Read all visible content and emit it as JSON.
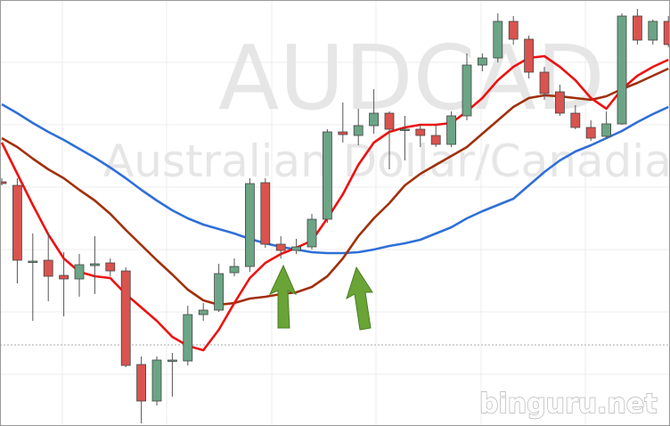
{
  "chart_data": {
    "type": "candlestick",
    "watermark": "AUDCAD",
    "watermark_subtitle": "Australian Dollar/Canadian",
    "credit": "binguru.net",
    "ylim": [
      0,
      478
    ],
    "up_color": "#6ba585",
    "down_color": "#d9534f",
    "open": [
      274,
      270,
      184,
      186,
      169,
      165,
      180,
      183,
      174,
      69,
      28,
      73,
      73,
      125,
      130,
      172,
      179,
      273,
      204,
      197,
      201,
      232,
      330,
      326,
      337,
      351,
      332,
      333,
      326,
      316,
      348,
      405,
      413,
      454,
      434,
      397,
      375,
      351,
      335,
      325,
      339,
      460,
      433,
      454
    ],
    "high": [
      278,
      278,
      216,
      216,
      195,
      193,
      213,
      188,
      178,
      78,
      78,
      82,
      135,
      138,
      182,
      188,
      278,
      278,
      213,
      210,
      238,
      333,
      363,
      356,
      378,
      353,
      348,
      338,
      338,
      353,
      418,
      418,
      463,
      460,
      438,
      403,
      383,
      360,
      343,
      353,
      463,
      468,
      456,
      460
    ],
    "low": [
      270,
      160,
      118,
      140,
      123,
      145,
      148,
      168,
      66,
      3,
      23,
      33,
      68,
      118,
      128,
      168,
      173,
      200,
      188,
      193,
      198,
      228,
      318,
      315,
      328,
      288,
      298,
      313,
      313,
      313,
      343,
      398,
      408,
      428,
      390,
      366,
      348,
      333,
      320,
      323,
      338,
      428,
      428,
      425
    ],
    "close": [
      272,
      186,
      185,
      168,
      165,
      181,
      182,
      174,
      68,
      28,
      74,
      74,
      125,
      130,
      171,
      179,
      272,
      204,
      197,
      201,
      232,
      330,
      327,
      337,
      351,
      333,
      333,
      326,
      316,
      348,
      405,
      413,
      454,
      434,
      397,
      373,
      351,
      335,
      323,
      339,
      460,
      433,
      454,
      428
    ],
    "series": [
      {
        "color": "#2f6fd8",
        "values": [
          361,
          351,
          340,
          330,
          321,
          311,
          301,
          290,
          278,
          265,
          253,
          242,
          233,
          226,
          221,
          216,
          210,
          205,
          201,
          198,
          195,
          194,
          194,
          195,
          198,
          202,
          205,
          209,
          216,
          223,
          233,
          241,
          248,
          255,
          270,
          285,
          298,
          308,
          315,
          323,
          331,
          341,
          350,
          358
        ]
      },
      {
        "color": "#a0300c",
        "values": [
          323,
          313,
          300,
          288,
          278,
          265,
          253,
          238,
          220,
          203,
          186,
          170,
          153,
          141,
          136,
          138,
          143,
          145,
          148,
          150,
          156,
          168,
          188,
          213,
          233,
          250,
          270,
          283,
          293,
          303,
          313,
          328,
          343,
          358,
          368,
          371,
          370,
          368,
          366,
          370,
          378,
          385,
          393,
          401
        ]
      },
      {
        "color": "#ee1111",
        "values": [
          318,
          283,
          248,
          215,
          188,
          173,
          168,
          166,
          148,
          133,
          118,
          100,
          90,
          85,
          108,
          138,
          166,
          183,
          193,
          200,
          208,
          233,
          260,
          293,
          318,
          330,
          335,
          338,
          338,
          340,
          353,
          368,
          388,
          403,
          413,
          415,
          403,
          388,
          368,
          356,
          378,
          393,
          403,
          411
        ]
      }
    ]
  }
}
